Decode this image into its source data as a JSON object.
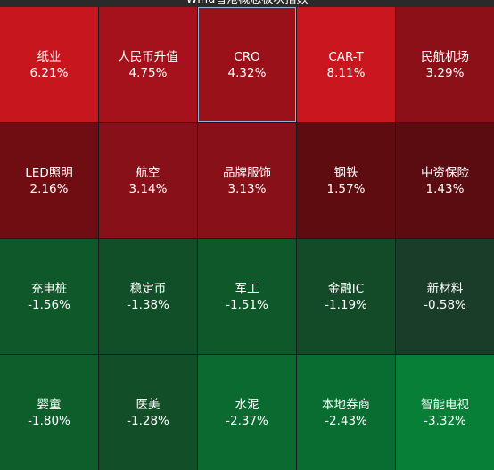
{
  "header": {
    "title": "Wind香港概念板块指数"
  },
  "cells": [
    {
      "name": "纸业",
      "change": "6.21%",
      "color": "#c8161f"
    },
    {
      "name": "人民币升值",
      "change": "4.75%",
      "color": "#a5121b"
    },
    {
      "name": "CRO",
      "change": "4.32%",
      "color": "#9b1119",
      "selected": true
    },
    {
      "name": "CAR-T",
      "change": "8.11%",
      "color": "#c9161f"
    },
    {
      "name": "民航机场",
      "change": "3.29%",
      "color": "#8b1017"
    },
    {
      "name": "LED照明",
      "change": "2.16%",
      "color": "#6f0d13"
    },
    {
      "name": "航空",
      "change": "3.14%",
      "color": "#871019"
    },
    {
      "name": "品牌服饰",
      "change": "3.13%",
      "color": "#871019"
    },
    {
      "name": "钢铁",
      "change": "1.57%",
      "color": "#5f0c11"
    },
    {
      "name": "中资保险",
      "change": "1.43%",
      "color": "#5a0c10"
    },
    {
      "name": "充电桩",
      "change": "-1.56%",
      "color": "#0f582a"
    },
    {
      "name": "稳定币",
      "change": "-1.38%",
      "color": "#114f28"
    },
    {
      "name": "军工",
      "change": "-1.51%",
      "color": "#0f582a"
    },
    {
      "name": "金融IC",
      "change": "-1.19%",
      "color": "#134a27"
    },
    {
      "name": "新材料",
      "change": "-0.58%",
      "color": "#1a3d29"
    },
    {
      "name": "婴童",
      "change": "-1.80%",
      "color": "#0e5e2c"
    },
    {
      "name": "医美",
      "change": "-1.28%",
      "color": "#124f28"
    },
    {
      "name": "水泥",
      "change": "-2.37%",
      "color": "#0a6a30"
    },
    {
      "name": "本地券商",
      "change": "-2.43%",
      "color": "#096d31"
    },
    {
      "name": "智能电视",
      "change": "-3.32%",
      "color": "#077f36"
    }
  ]
}
